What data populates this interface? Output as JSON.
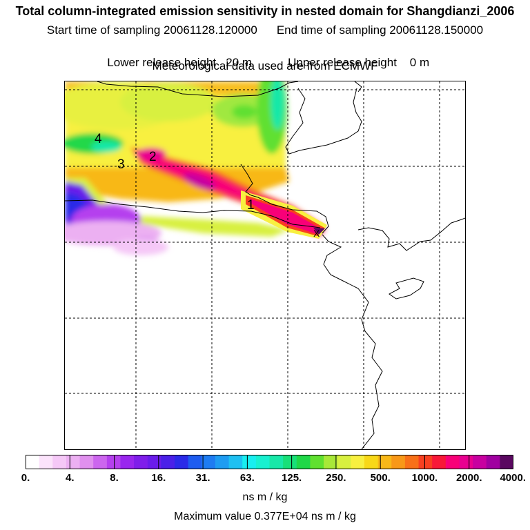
{
  "header": {
    "title": "Total column-integrated emission sensitivity in nested domain for Shangdianzi_2006",
    "start_label": "Start time of sampling 20061128.120000",
    "end_label": "End time of sampling 20061128.150000",
    "lower_label": "Lower release height   20 m",
    "upper_label": "Upper release height    0 m",
    "met_label": "Meteorological data used are from ECMWF"
  },
  "map": {
    "contour_labels": [
      "1",
      "2",
      "3",
      "4"
    ],
    "receptor_marker": "X"
  },
  "colorbar": {
    "tick_labels": [
      "0.",
      "4.",
      "8.",
      "16.",
      "31.",
      "63.",
      "125.",
      "250.",
      "500.",
      "1000.",
      "2000.",
      "4000."
    ],
    "colors": [
      "#ffffff",
      "#fbe3fb",
      "#f5c8f7",
      "#ecb0f2",
      "#e090ee",
      "#cc66ee",
      "#b540ee",
      "#9926ee",
      "#7f1eea",
      "#6a1cea",
      "#4a20e8",
      "#2a2ae8",
      "#1e5cf0",
      "#1e7cf2",
      "#1e9cf2",
      "#1ec0f2",
      "#18eef0",
      "#18f0d0",
      "#18e8a8",
      "#18e078",
      "#20d848",
      "#60e030",
      "#a8e838",
      "#d8f040",
      "#f8f040",
      "#f8d818",
      "#f8b818",
      "#f89818",
      "#f87018",
      "#f84020",
      "#f81838",
      "#f80078",
      "#e80090",
      "#c800a0",
      "#a000a0",
      "#5a0860"
    ],
    "units": "ns m / kg",
    "max_value": "Maximum value  0.377E+04 ns m / kg"
  }
}
